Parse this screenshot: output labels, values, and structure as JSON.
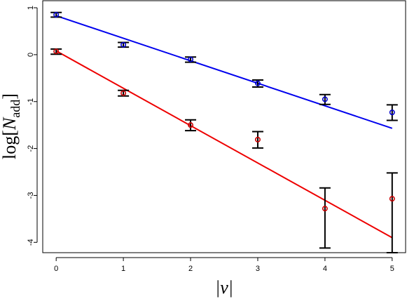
{
  "chart_data": {
    "type": "scatter",
    "title": "",
    "xlabel": "|ν|",
    "ylabel_parts": {
      "prefix": "log",
      "open": "[",
      "symbol": "N",
      "subscript": "add",
      "close": "]"
    },
    "xlim": [
      -0.2,
      5.2
    ],
    "ylim": [
      -4.22,
      1.15
    ],
    "xticks": [
      0,
      1,
      2,
      3,
      4,
      5
    ],
    "xtick_labels": [
      "0",
      "1",
      "2",
      "3",
      "4",
      "5"
    ],
    "yticks": [
      1,
      0,
      -1,
      -2,
      -3,
      -4
    ],
    "ytick_labels": [
      "1",
      "0",
      "-1",
      "-2",
      "-3",
      "-4"
    ],
    "grid": false,
    "legend": "none",
    "series": [
      {
        "color": "#0000cc",
        "line_color": "#0000ee",
        "x": [
          0,
          1,
          2,
          3,
          4,
          5
        ],
        "y": [
          0.85,
          0.21,
          -0.1,
          -0.61,
          -0.95,
          -1.23
        ],
        "err_low": [
          0.8,
          0.16,
          -0.16,
          -0.69,
          -1.06,
          -1.4
        ],
        "err_high": [
          0.9,
          0.26,
          -0.05,
          -0.54,
          -0.85,
          -1.07
        ],
        "fit": {
          "x": [
            0,
            5
          ],
          "y": [
            0.83,
            -1.57
          ]
        }
      },
      {
        "color": "#cc0000",
        "line_color": "#ee0000",
        "x": [
          0,
          1,
          2,
          3,
          4,
          5
        ],
        "y": [
          0.07,
          -0.82,
          -1.5,
          -1.81,
          -3.28,
          -3.07
        ],
        "err_low": [
          0.01,
          -0.88,
          -1.62,
          -1.99,
          -4.12,
          -4.22
        ],
        "err_high": [
          0.12,
          -0.76,
          -1.39,
          -1.64,
          -2.84,
          -2.52
        ],
        "fit": {
          "x": [
            0,
            5
          ],
          "y": [
            0.08,
            -3.9
          ]
        }
      }
    ]
  }
}
